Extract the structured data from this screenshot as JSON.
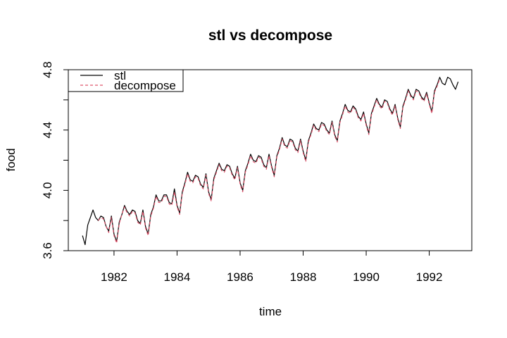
{
  "chart_data": {
    "type": "line",
    "title": "stl vs decompose",
    "xlabel": "time",
    "ylabel": "food",
    "xlim": [
      1980.55,
      1993.35
    ],
    "ylim": [
      3.6,
      4.8
    ],
    "x_ticks": [
      1982,
      1984,
      1986,
      1988,
      1990,
      1992
    ],
    "y_ticks": [
      3.6,
      4.0,
      4.4,
      4.8
    ],
    "x_tick_labels": [
      "1982",
      "1984",
      "1986",
      "1988",
      "1990",
      "1992"
    ],
    "y_tick_labels": [
      "3.6",
      "4.0",
      "4.4",
      "4.8"
    ],
    "legend": {
      "position": "top-left",
      "entries": [
        {
          "name": "stl",
          "color": "#000000",
          "dash": "solid"
        },
        {
          "name": "decompose",
          "color": "#DF536B",
          "dash": "dashed"
        }
      ]
    },
    "series": [
      {
        "name": "stl",
        "color": "#000000",
        "x_start": 1981.0,
        "step": 0.0833333,
        "values": [
          3.7,
          3.64,
          3.77,
          3.82,
          3.87,
          3.82,
          3.8,
          3.83,
          3.82,
          3.76,
          3.73,
          3.83,
          3.71,
          3.66,
          3.79,
          3.84,
          3.9,
          3.86,
          3.84,
          3.87,
          3.86,
          3.8,
          3.78,
          3.87,
          3.76,
          3.71,
          3.84,
          3.89,
          3.97,
          3.93,
          3.93,
          3.97,
          3.97,
          3.92,
          3.91,
          4.01,
          3.9,
          3.85,
          3.99,
          4.05,
          4.12,
          4.07,
          4.06,
          4.1,
          4.09,
          4.04,
          4.02,
          4.11,
          3.99,
          3.94,
          4.08,
          4.13,
          4.18,
          4.14,
          4.13,
          4.17,
          4.16,
          4.11,
          4.08,
          4.16,
          4.05,
          4.0,
          4.13,
          4.18,
          4.24,
          4.2,
          4.19,
          4.23,
          4.22,
          4.17,
          4.15,
          4.24,
          4.16,
          4.1,
          4.23,
          4.28,
          4.35,
          4.3,
          4.29,
          4.34,
          4.33,
          4.28,
          4.26,
          4.34,
          4.26,
          4.2,
          4.33,
          4.38,
          4.44,
          4.41,
          4.4,
          4.45,
          4.44,
          4.4,
          4.38,
          4.46,
          4.37,
          4.33,
          4.46,
          4.51,
          4.57,
          4.53,
          4.52,
          4.56,
          4.54,
          4.49,
          4.47,
          4.52,
          4.44,
          4.38,
          4.51,
          4.56,
          4.61,
          4.57,
          4.55,
          4.6,
          4.59,
          4.54,
          4.51,
          4.57,
          4.48,
          4.42,
          4.56,
          4.61,
          4.67,
          4.63,
          4.61,
          4.67,
          4.66,
          4.62,
          4.6,
          4.65,
          4.58,
          4.52,
          4.66,
          4.7,
          4.75,
          4.71,
          4.7,
          4.75,
          4.74,
          4.7,
          4.67,
          4.72
        ]
      },
      {
        "name": "decompose",
        "color": "#DF536B",
        "x_start": 1981.5,
        "step": 0.0833333,
        "values": [
          3.8,
          3.82,
          3.81,
          3.76,
          3.72,
          3.82,
          3.7,
          3.65,
          3.78,
          3.84,
          3.89,
          3.85,
          3.83,
          3.86,
          3.85,
          3.79,
          3.77,
          3.86,
          3.75,
          3.7,
          3.83,
          3.88,
          3.96,
          3.92,
          3.92,
          3.96,
          3.96,
          3.91,
          3.9,
          3.99,
          3.89,
          3.84,
          3.98,
          4.04,
          4.11,
          4.06,
          4.05,
          4.09,
          4.08,
          4.03,
          4.01,
          4.1,
          3.98,
          3.93,
          4.07,
          4.12,
          4.17,
          4.13,
          4.12,
          4.16,
          4.15,
          4.1,
          4.07,
          4.15,
          4.04,
          3.99,
          4.12,
          4.17,
          4.23,
          4.19,
          4.18,
          4.22,
          4.21,
          4.16,
          4.14,
          4.23,
          4.15,
          4.09,
          4.22,
          4.27,
          4.34,
          4.29,
          4.28,
          4.33,
          4.32,
          4.27,
          4.25,
          4.33,
          4.25,
          4.19,
          4.32,
          4.37,
          4.43,
          4.4,
          4.39,
          4.44,
          4.43,
          4.39,
          4.37,
          4.45,
          4.36,
          4.32,
          4.45,
          4.5,
          4.56,
          4.52,
          4.51,
          4.55,
          4.53,
          4.48,
          4.46,
          4.51,
          4.43,
          4.37,
          4.5,
          4.55,
          4.6,
          4.56,
          4.54,
          4.59,
          4.58,
          4.53,
          4.5,
          4.56,
          4.47,
          4.41,
          4.55,
          4.6,
          4.66,
          4.62,
          4.6,
          4.66,
          4.65,
          4.61,
          4.59,
          4.64,
          4.57,
          4.51,
          4.65,
          4.69,
          4.74
        ]
      }
    ]
  }
}
